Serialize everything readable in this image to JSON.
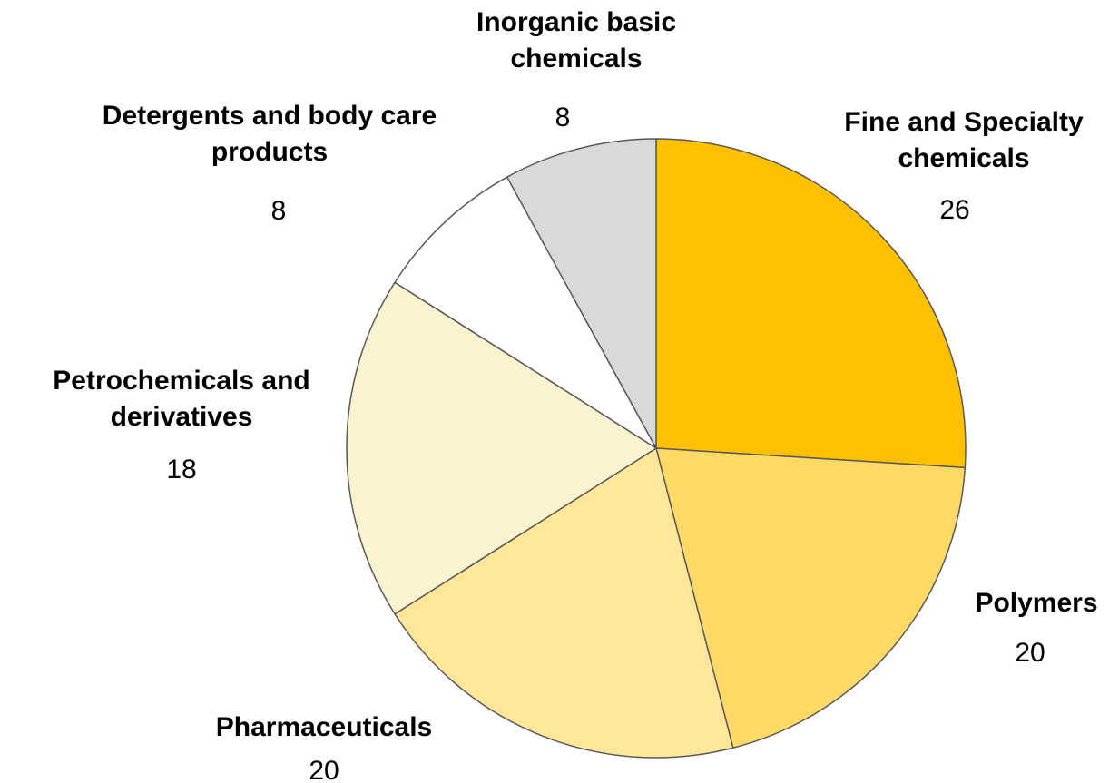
{
  "chart_data": {
    "type": "pie",
    "categories": [
      "Fine and Specialty chemicals",
      "Polymers",
      "Pharmaceuticals",
      "Petrochemicals and derivatives",
      "Detergents and body care products",
      "Inorganic basic chemicals"
    ],
    "values": [
      26,
      20,
      20,
      18,
      8,
      8
    ],
    "colors": [
      "#ffc000",
      "#ffd966",
      "#ffe699",
      "#f9f3cf",
      "#ffffff",
      "#d9d9d9"
    ]
  }
}
